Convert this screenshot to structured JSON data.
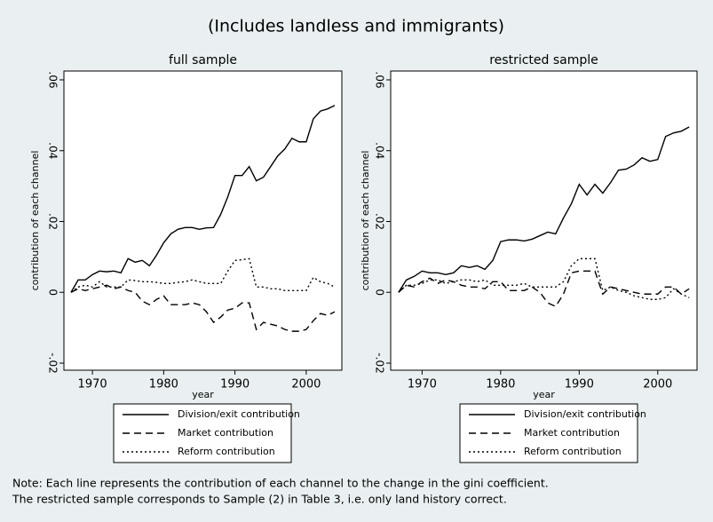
{
  "title": "(Includes landless and immigrants)",
  "note": [
    "Note: Each line represents the contribution of each channel to the change in the gini coefficient.",
    "The restricted sample corresponds to Sample (2) in Table 3, i.e. only land history correct."
  ],
  "chart_data": [
    {
      "type": "line",
      "title": "full sample",
      "x_label": "year",
      "y_label": "contribution of each channel",
      "x": [
        1967,
        1968,
        1969,
        1970,
        1971,
        1972,
        1973,
        1974,
        1975,
        1976,
        1977,
        1978,
        1979,
        1980,
        1981,
        1982,
        1983,
        1984,
        1985,
        1986,
        1987,
        1988,
        1989,
        1990,
        1991,
        1992,
        1993,
        1994,
        1995,
        1996,
        1997,
        1998,
        1999,
        2000,
        2001,
        2002,
        2003,
        2004
      ],
      "xlim": [
        1966,
        2005
      ],
      "xticks": [
        1970,
        1980,
        1990,
        2000
      ],
      "ylim": [
        -0.022,
        0.0625
      ],
      "yticks": [
        {
          "value": -0.02,
          "label": "-.02"
        },
        0,
        {
          "value": 0.02,
          "label": ".02"
        },
        {
          "value": 0.04,
          "label": ".04"
        },
        {
          "value": 0.06,
          "label": ".06"
        }
      ],
      "series": [
        {
          "name": "Division/exit contribution",
          "color": "#000000",
          "dash": "solid",
          "values": [
            0,
            0.0035,
            0.0035,
            0.005,
            0.006,
            0.0058,
            0.006,
            0.0055,
            0.0095,
            0.0085,
            0.009,
            0.0075,
            0.0105,
            0.014,
            0.0165,
            0.0178,
            0.0183,
            0.0183,
            0.0178,
            0.0182,
            0.0183,
            0.022,
            0.027,
            0.033,
            0.033,
            0.0355,
            0.0315,
            0.0325,
            0.0355,
            0.0385,
            0.0405,
            0.0435,
            0.0425,
            0.0425,
            0.049,
            0.0512,
            0.0518,
            0.0528
          ]
        },
        {
          "name": "Market contribution",
          "color": "#000000",
          "dash": "dashed",
          "values": [
            0,
            0.001,
            0.0005,
            0.001,
            0.0015,
            0.002,
            0.001,
            0.0015,
            0.0005,
            0,
            -0.0025,
            -0.0035,
            -0.002,
            -0.001,
            -0.0035,
            -0.0035,
            -0.0035,
            -0.003,
            -0.0035,
            -0.0055,
            -0.0085,
            -0.007,
            -0.005,
            -0.0045,
            -0.003,
            -0.003,
            -0.0105,
            -0.0085,
            -0.009,
            -0.0095,
            -0.0105,
            -0.011,
            -0.011,
            -0.0105,
            -0.008,
            -0.006,
            -0.0065,
            -0.0055
          ]
        },
        {
          "name": "Reform contribution",
          "color": "#000000",
          "dash": "dotted",
          "values": [
            0,
            0.0015,
            0.002,
            0.0015,
            0.003,
            0.0015,
            0.0015,
            0.0015,
            0.0035,
            0.0033,
            0.003,
            0.003,
            0.0028,
            0.0025,
            0.0025,
            0.0028,
            0.003,
            0.0035,
            0.003,
            0.0025,
            0.0025,
            0.0025,
            0.006,
            0.009,
            0.0092,
            0.0095,
            0.0015,
            0.0015,
            0.001,
            0.001,
            0.0005,
            0.0005,
            0.0005,
            0.0005,
            0.0042,
            0.003,
            0.0025,
            0.0015
          ]
        }
      ]
    },
    {
      "type": "line",
      "title": "restricted sample",
      "x_label": "year",
      "y_label": "contribution of each channel",
      "x": [
        1967,
        1968,
        1969,
        1970,
        1971,
        1972,
        1973,
        1974,
        1975,
        1976,
        1977,
        1978,
        1979,
        1980,
        1981,
        1982,
        1983,
        1984,
        1985,
        1986,
        1987,
        1988,
        1989,
        1990,
        1991,
        1992,
        1993,
        1994,
        1995,
        1996,
        1997,
        1998,
        1999,
        2000,
        2001,
        2002,
        2003,
        2004
      ],
      "xlim": [
        1966,
        2005
      ],
      "xticks": [
        1970,
        1980,
        1990,
        2000
      ],
      "ylim": [
        -0.022,
        0.0625
      ],
      "yticks": [
        {
          "value": -0.02,
          "label": "-.02"
        },
        0,
        {
          "value": 0.02,
          "label": ".02"
        },
        {
          "value": 0.04,
          "label": ".04"
        },
        {
          "value": 0.06,
          "label": ".06"
        }
      ],
      "series": [
        {
          "name": "Division/exit contribution",
          "color": "#000000",
          "dash": "solid",
          "values": [
            0,
            0.0035,
            0.0045,
            0.006,
            0.0055,
            0.0055,
            0.005,
            0.0055,
            0.0075,
            0.007,
            0.0075,
            0.0065,
            0.009,
            0.0143,
            0.0148,
            0.0148,
            0.0145,
            0.015,
            0.016,
            0.017,
            0.0165,
            0.021,
            0.025,
            0.0305,
            0.0275,
            0.0305,
            0.028,
            0.031,
            0.0345,
            0.0348,
            0.036,
            0.038,
            0.037,
            0.0375,
            0.044,
            0.045,
            0.0455,
            0.0467
          ]
        },
        {
          "name": "Market contribution",
          "color": "#000000",
          "dash": "dashed",
          "values": [
            0,
            0.002,
            0.0015,
            0.003,
            0.004,
            0.0025,
            0.0035,
            0.003,
            0.002,
            0.0015,
            0.0015,
            0.001,
            0.003,
            0.003,
            0.0005,
            0.0005,
            0.0005,
            0.0015,
            0,
            -0.003,
            -0.004,
            -0.0005,
            0.0055,
            0.006,
            0.006,
            0.006,
            -0.0005,
            0.0015,
            0.001,
            0.0005,
            0,
            -0.0005,
            -0.0005,
            -0.0005,
            0.0015,
            0.0015,
            -0.0005,
            0.001
          ]
        },
        {
          "name": "Reform contribution",
          "color": "#000000",
          "dash": "dotted",
          "values": [
            0,
            0.002,
            0.002,
            0.0025,
            0.0035,
            0.0035,
            0.0025,
            0.003,
            0.0035,
            0.0035,
            0.003,
            0.0035,
            0.002,
            0.002,
            0.002,
            0.002,
            0.0025,
            0.0015,
            0.0015,
            0.0015,
            0.0015,
            0.003,
            0.0075,
            0.0095,
            0.0095,
            0.0095,
            0.0005,
            0.0015,
            0.0005,
            0,
            -0.001,
            -0.0015,
            -0.002,
            -0.002,
            -0.0015,
            0.001,
            -0.0005,
            -0.0015
          ]
        }
      ]
    }
  ]
}
